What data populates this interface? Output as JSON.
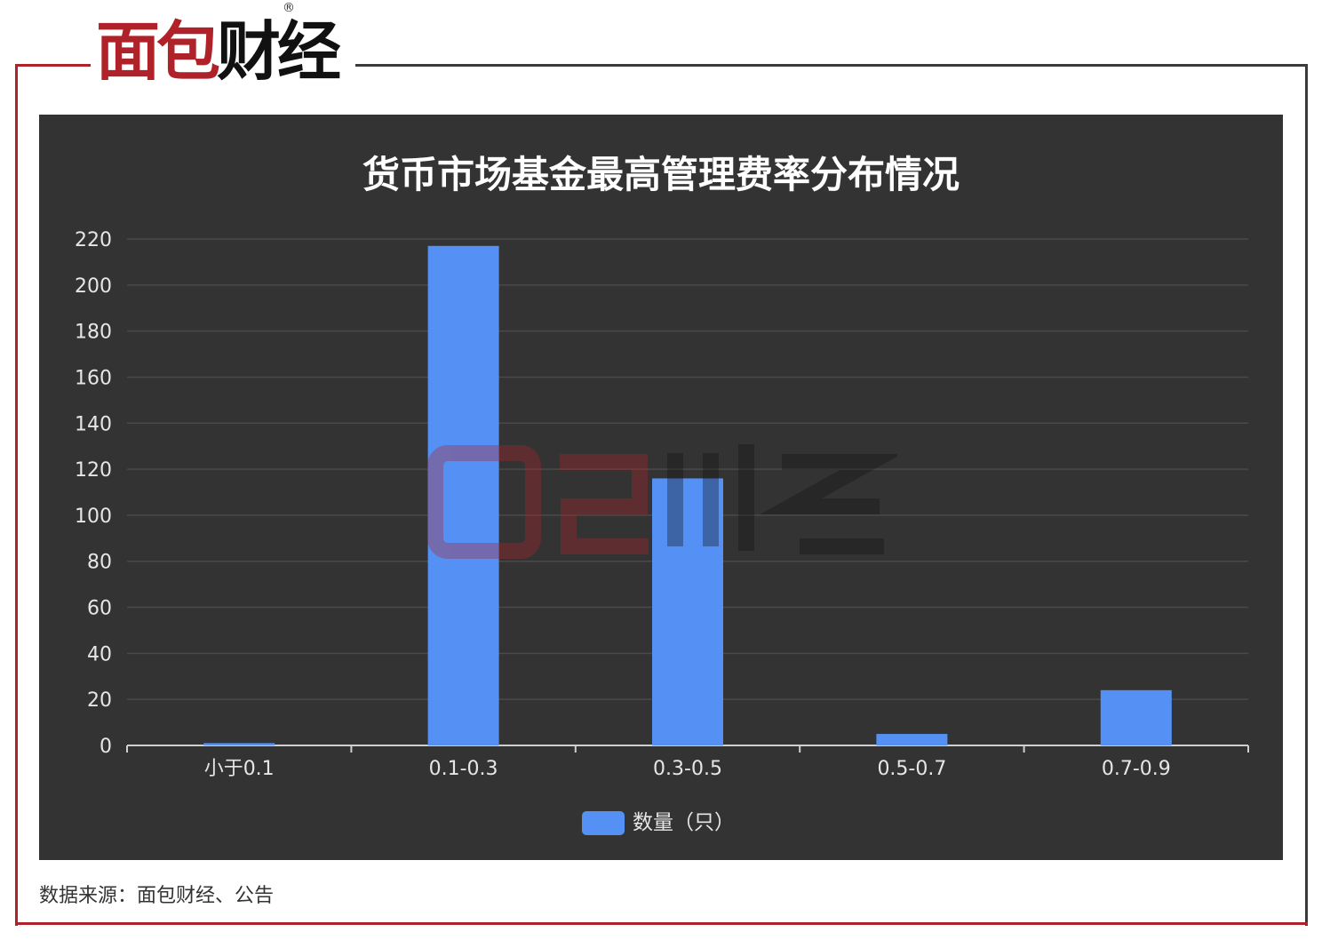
{
  "logo": {
    "text": "面包财经",
    "registered": "®"
  },
  "source": "数据来源：面包财经、公告",
  "colors": {
    "bar": "#5591f4",
    "panel": "#333333",
    "brand_red": "#b0222a"
  },
  "chart_data": {
    "type": "bar",
    "title": "货币市场基金最高管理费率分布情况",
    "categories": [
      "小于0.1",
      "0.1-0.3",
      "0.3-0.5",
      "0.5-0.7",
      "0.7-0.9"
    ],
    "series": [
      {
        "name": "数量（只）",
        "values": [
          1,
          217,
          116,
          5,
          24
        ]
      }
    ],
    "ylim": [
      0,
      220
    ],
    "yticks": [
      0,
      20,
      40,
      60,
      80,
      100,
      120,
      140,
      160,
      180,
      200,
      220
    ],
    "grid": true,
    "legend": "bottom"
  }
}
